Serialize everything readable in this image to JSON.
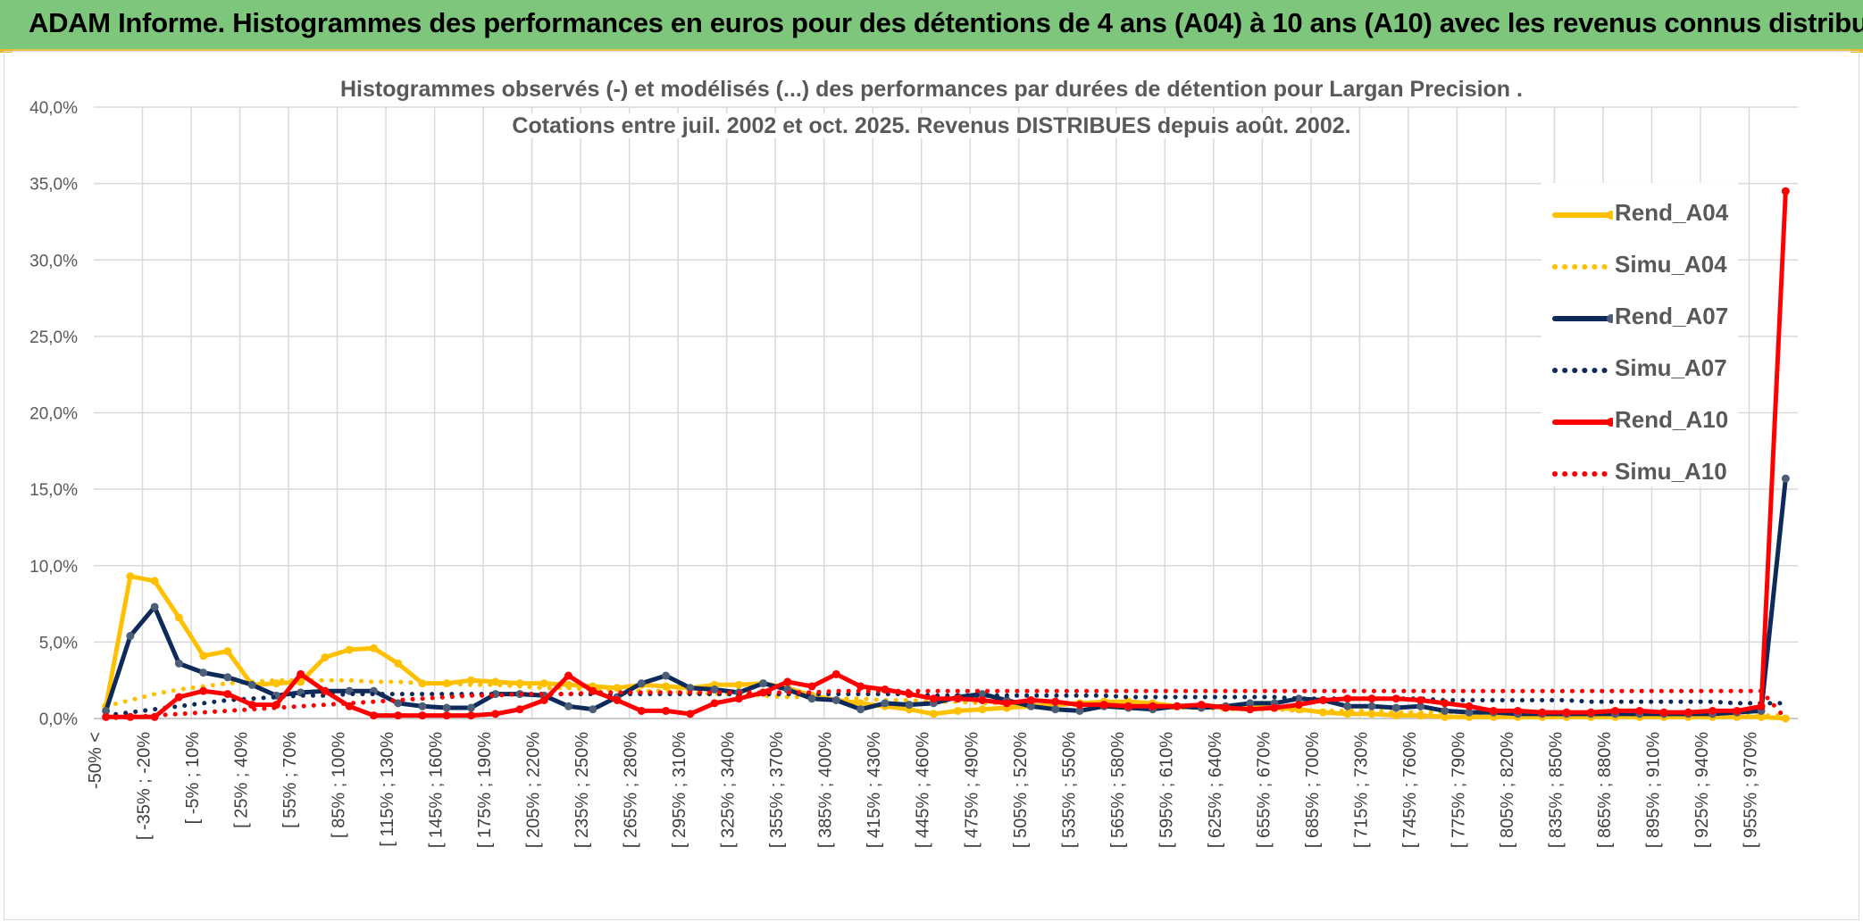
{
  "banner": {
    "title": "ADAM Informe. Histogrammes des performances en euros pour des détentions de 4 ans (A04) à 10 ans (A10) avec les revenus connus distribués"
  },
  "chart_data": {
    "type": "line",
    "title": "Histogrammes observés (-) et modélisés (...) des performances par durées de détention pour Largan Precision .",
    "subtitle": "Cotations entre juil. 2002 et oct. 2025. Revenus DISTRIBUES depuis août. 2002.",
    "xlabel": "",
    "ylabel": "",
    "ylim": [
      0,
      40
    ],
    "y_ticks": [
      "0,0%",
      "5,0%",
      "10,0%",
      "15,0%",
      "20,0%",
      "25,0%",
      "30,0%",
      "35,0%",
      "40,0%"
    ],
    "x_ticks": [
      "-50% <",
      "[ -35% ; -20%",
      "[ -5% ; 10%",
      "[ 25% ; 40%",
      "[ 55% ; 70%",
      "[ 85% ; 100%",
      "[ 115% ; 130%",
      "[ 145% ; 160%",
      "[ 175% ; 190%",
      "[ 205% ; 220%",
      "[ 235% ; 250%",
      "[ 265% ; 280%",
      "[ 295% ; 310%",
      "[ 325% ; 340%",
      "[ 355% ; 370%",
      "[ 385% ; 400%",
      "[ 415% ; 430%",
      "[ 445% ; 460%",
      "[ 475% ; 490%",
      "[ 505% ; 520%",
      "[ 535% ; 550%",
      "[ 565% ; 580%",
      "[ 595% ; 610%",
      "[ 625% ; 640%",
      "[ 655% ; 670%",
      "[ 685% ; 700%",
      "[ 715% ; 730%",
      "[ 745% ; 760%",
      "[ 775% ; 790%",
      "[ 805% ; 820%",
      "[ 835% ; 850%",
      "[ 865% ; 880%",
      "[ 895% ; 910%",
      "[ 925% ; 940%",
      "[ 955% ; 970%"
    ],
    "n_bins": 70,
    "legend_position": "right",
    "grid": true,
    "series": [
      {
        "name": "Rend_A04",
        "style": "solid",
        "color": "#ffc000",
        "values": [
          0.8,
          9.3,
          9.0,
          6.6,
          4.1,
          4.4,
          2.2,
          2.3,
          2.4,
          4.0,
          4.5,
          4.6,
          3.6,
          2.3,
          2.3,
          2.5,
          2.4,
          2.3,
          2.3,
          2.2,
          2.1,
          2.0,
          2.2,
          2.1,
          2.0,
          2.2,
          2.2,
          2.3,
          2.0,
          1.5,
          1.2,
          1.0,
          0.8,
          0.6,
          0.3,
          0.5,
          0.6,
          0.7,
          0.8,
          0.9,
          1.0,
          1.1,
          1.1,
          1.0,
          0.8,
          0.8,
          0.8,
          0.8,
          0.7,
          0.6,
          0.4,
          0.3,
          0.3,
          0.2,
          0.2,
          0.1,
          0.1,
          0.1,
          0.1,
          0.1,
          0.1,
          0.1,
          0.1,
          0.1,
          0.1,
          0.1,
          0.1,
          0.1,
          0.1,
          0.0
        ]
      },
      {
        "name": "Simu_A04",
        "style": "dotted",
        "color": "#ffc000",
        "values": [
          0.8,
          1.2,
          1.6,
          1.9,
          2.1,
          2.3,
          2.4,
          2.5,
          2.5,
          2.5,
          2.5,
          2.4,
          2.4,
          2.3,
          2.3,
          2.2,
          2.2,
          2.1,
          2.0,
          2.0,
          1.9,
          1.9,
          1.8,
          1.8,
          1.7,
          1.6,
          1.6,
          1.5,
          1.4,
          1.4,
          1.3,
          1.3,
          1.2,
          1.2,
          1.1,
          1.1,
          1.0,
          1.0,
          0.9,
          0.9,
          0.9,
          0.8,
          0.8,
          0.7,
          0.7,
          0.7,
          0.6,
          0.6,
          0.6,
          0.5,
          0.5,
          0.5,
          0.5,
          0.4,
          0.4,
          0.4,
          0.4,
          0.3,
          0.3,
          0.3,
          0.3,
          0.3,
          0.3,
          0.2,
          0.2,
          0.2,
          0.2,
          0.2,
          0.2,
          0.2
        ]
      },
      {
        "name": "Rend_A07",
        "style": "solid",
        "color": "#0d2a5a",
        "values": [
          0.5,
          5.4,
          7.3,
          3.6,
          3.0,
          2.7,
          2.2,
          1.5,
          1.7,
          1.8,
          1.8,
          1.8,
          1.0,
          0.8,
          0.7,
          0.7,
          1.6,
          1.6,
          1.5,
          0.8,
          0.6,
          1.4,
          2.3,
          2.8,
          2.0,
          1.9,
          1.7,
          2.3,
          1.9,
          1.3,
          1.2,
          0.6,
          1.0,
          0.9,
          1.0,
          1.4,
          1.6,
          1.2,
          0.8,
          0.6,
          0.5,
          0.8,
          0.7,
          0.6,
          0.8,
          0.7,
          0.8,
          1.0,
          1.0,
          1.3,
          1.2,
          0.8,
          0.8,
          0.7,
          0.8,
          0.5,
          0.4,
          0.4,
          0.3,
          0.3,
          0.3,
          0.3,
          0.3,
          0.3,
          0.3,
          0.3,
          0.3,
          0.4,
          0.5,
          15.7
        ]
      },
      {
        "name": "Simu_A07",
        "style": "dotted",
        "color": "#0d2a5a",
        "values": [
          0.2,
          0.4,
          0.6,
          0.8,
          1.0,
          1.2,
          1.3,
          1.4,
          1.5,
          1.5,
          1.6,
          1.6,
          1.6,
          1.6,
          1.6,
          1.6,
          1.6,
          1.6,
          1.6,
          1.6,
          1.6,
          1.6,
          1.6,
          1.6,
          1.6,
          1.6,
          1.6,
          1.6,
          1.6,
          1.6,
          1.6,
          1.6,
          1.6,
          1.6,
          1.5,
          1.5,
          1.5,
          1.5,
          1.5,
          1.5,
          1.5,
          1.5,
          1.4,
          1.4,
          1.4,
          1.4,
          1.4,
          1.4,
          1.4,
          1.3,
          1.3,
          1.3,
          1.3,
          1.3,
          1.3,
          1.2,
          1.2,
          1.2,
          1.2,
          1.2,
          1.2,
          1.1,
          1.1,
          1.1,
          1.1,
          1.1,
          1.1,
          1.0,
          1.0,
          1.0
        ]
      },
      {
        "name": "Rend_A10",
        "style": "solid",
        "color": "#ff0000",
        "values": [
          0.1,
          0.1,
          0.1,
          1.4,
          1.8,
          1.6,
          0.9,
          0.9,
          2.9,
          1.8,
          0.8,
          0.2,
          0.2,
          0.2,
          0.2,
          0.2,
          0.3,
          0.6,
          1.2,
          2.8,
          1.8,
          1.2,
          0.5,
          0.5,
          0.3,
          1.0,
          1.3,
          1.7,
          2.4,
          2.1,
          2.9,
          2.1,
          1.9,
          1.6,
          1.3,
          1.3,
          1.2,
          1.0,
          1.2,
          1.1,
          0.9,
          0.9,
          0.8,
          0.8,
          0.8,
          0.9,
          0.7,
          0.6,
          0.7,
          0.9,
          1.2,
          1.3,
          1.3,
          1.3,
          1.2,
          1.0,
          0.8,
          0.5,
          0.5,
          0.4,
          0.4,
          0.4,
          0.5,
          0.5,
          0.4,
          0.4,
          0.5,
          0.5,
          0.8,
          34.5
        ]
      },
      {
        "name": "Simu_A10",
        "style": "dotted",
        "color": "#ff0000",
        "values": [
          0.0,
          0.1,
          0.2,
          0.3,
          0.4,
          0.5,
          0.6,
          0.7,
          0.8,
          0.9,
          1.0,
          1.1,
          1.2,
          1.3,
          1.4,
          1.5,
          1.5,
          1.6,
          1.6,
          1.6,
          1.7,
          1.7,
          1.7,
          1.7,
          1.7,
          1.7,
          1.7,
          1.7,
          1.7,
          1.7,
          1.8,
          1.8,
          1.8,
          1.8,
          1.8,
          1.8,
          1.8,
          1.8,
          1.8,
          1.8,
          1.8,
          1.8,
          1.8,
          1.8,
          1.8,
          1.8,
          1.8,
          1.8,
          1.8,
          1.8,
          1.8,
          1.8,
          1.8,
          1.8,
          1.8,
          1.8,
          1.8,
          1.8,
          1.8,
          1.8,
          1.8,
          1.8,
          1.8,
          1.8,
          1.8,
          1.8,
          1.8,
          1.8,
          1.8,
          0.0
        ]
      }
    ]
  }
}
